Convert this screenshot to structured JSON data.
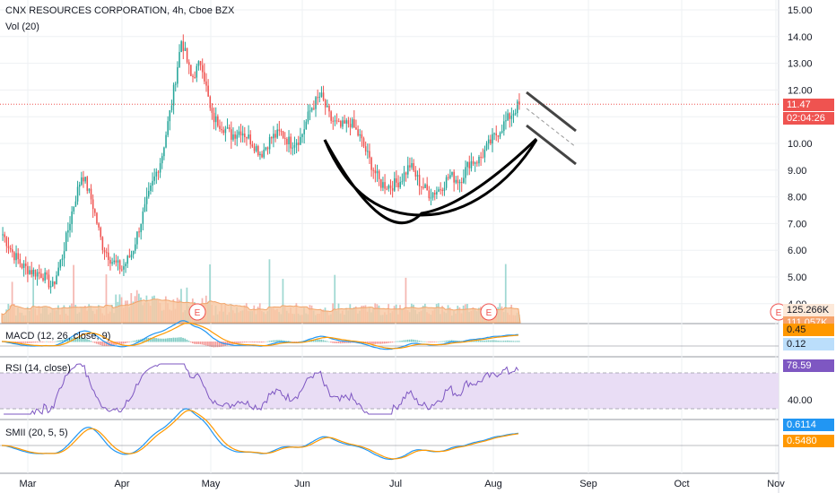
{
  "header": {
    "symbol_line": "CNX RESOURCES CORPORATION, 4h, Cboe BZX",
    "volume_line": "Vol (20)"
  },
  "indicators": {
    "macd_label": "MACD (12, 26, close, 9)",
    "rsi_label": "RSI (14, close)",
    "smii_label": "SMII (20, 5, 5)"
  },
  "price_axis": {
    "ticks": [
      "15.00",
      "14.00",
      "13.00",
      "12.00",
      "10.00",
      "9.00",
      "8.00",
      "7.00",
      "6.00",
      "5.00",
      "4.00"
    ]
  },
  "tags": {
    "last_price": "11.47",
    "countdown": "02:04:26",
    "volume_value": "125.266K",
    "volume_ma": "111.057K",
    "macd_value": "0.45",
    "macd_signal": "0.12",
    "rsi_value": "78.59",
    "rsi_level": "40.00",
    "smii_value": "0.6114",
    "smii_signal": "0.5480"
  },
  "earnings_marker": "E",
  "time_axis": {
    "labels": [
      "Mar",
      "Apr",
      "May",
      "Jun",
      "Jul",
      "Aug",
      "Sep",
      "Oct",
      "Nov"
    ]
  },
  "colors": {
    "up": "#26a69a",
    "down": "#ef5350",
    "macd": "#2196f3",
    "signal": "#ff9800",
    "rsi": "#7e57c2",
    "rsi_band": "#e9ddf5",
    "vol_ma": "#f7c8a2",
    "price_line": "#ef5350"
  },
  "chart_data": {
    "type": "candlestick",
    "title": "CNX RESOURCES CORPORATION, 4h, Cboe BZX",
    "x_labels": [
      "Mar",
      "Apr",
      "May",
      "Jun",
      "Jul",
      "Aug",
      "Sep",
      "Oct",
      "Nov"
    ],
    "y_range": [
      3.8,
      15.2
    ],
    "last_price": 11.47,
    "close_path": [
      {
        "x": "Feb 24",
        "y": 6.6
      },
      {
        "x": "Feb 28",
        "y": 5.9
      },
      {
        "x": "Mar 4",
        "y": 5.4
      },
      {
        "x": "Mar 8",
        "y": 5.2
      },
      {
        "x": "Mar 12",
        "y": 5.1
      },
      {
        "x": "Mar 15",
        "y": 4.6
      },
      {
        "x": "Mar 18",
        "y": 5.8
      },
      {
        "x": "Mar 21",
        "y": 7.5
      },
      {
        "x": "Mar 24",
        "y": 8.9
      },
      {
        "x": "Mar 27",
        "y": 7.8
      },
      {
        "x": "Mar 30",
        "y": 6.2
      },
      {
        "x": "Apr 2",
        "y": 5.6
      },
      {
        "x": "Apr 4",
        "y": 5.3
      },
      {
        "x": "Apr 6",
        "y": 5.9
      },
      {
        "x": "Apr 9",
        "y": 7.2
      },
      {
        "x": "Apr 12",
        "y": 8.4
      },
      {
        "x": "Apr 15",
        "y": 9.5
      },
      {
        "x": "Apr 18",
        "y": 11.5
      },
      {
        "x": "Apr 20",
        "y": 13.9
      },
      {
        "x": "Apr 22",
        "y": 12.4
      },
      {
        "x": "Apr 25",
        "y": 13.1
      },
      {
        "x": "Apr 28",
        "y": 11.0
      },
      {
        "x": "May 2",
        "y": 10.7
      },
      {
        "x": "May 6",
        "y": 10.3
      },
      {
        "x": "May 10",
        "y": 10.5
      },
      {
        "x": "May 14",
        "y": 10.1
      },
      {
        "x": "May 18",
        "y": 9.6
      },
      {
        "x": "May 22",
        "y": 10.2
      },
      {
        "x": "May 26",
        "y": 10.4
      },
      {
        "x": "May 30",
        "y": 10.0
      },
      {
        "x": "Jun 3",
        "y": 10.2
      },
      {
        "x": "Jun 7",
        "y": 11.3
      },
      {
        "x": "Jun 9",
        "y": 11.8
      },
      {
        "x": "Jun 12",
        "y": 10.9
      },
      {
        "x": "Jun 15",
        "y": 10.6
      },
      {
        "x": "Jun 18",
        "y": 10.8
      },
      {
        "x": "Jun 21",
        "y": 10.2
      },
      {
        "x": "Jun 24",
        "y": 9.3
      },
      {
        "x": "Jun 28",
        "y": 8.5
      },
      {
        "x": "Jul 1",
        "y": 8.4
      },
      {
        "x": "Jul 5",
        "y": 8.6
      },
      {
        "x": "Jul 8",
        "y": 9.2
      },
      {
        "x": "Jul 11",
        "y": 8.5
      },
      {
        "x": "Jul 14",
        "y": 8.1
      },
      {
        "x": "Jul 18",
        "y": 8.3
      },
      {
        "x": "Jul 21",
        "y": 8.8
      },
      {
        "x": "Jul 25",
        "y": 8.6
      },
      {
        "x": "Jul 28",
        "y": 9.3
      },
      {
        "x": "Aug 1",
        "y": 9.4
      },
      {
        "x": "Aug 4",
        "y": 10.0
      },
      {
        "x": "Aug 7",
        "y": 10.5
      },
      {
        "x": "Aug 9",
        "y": 11.0
      },
      {
        "x": "Aug 11",
        "y": 11.47
      }
    ],
    "annotations": [
      "cup curve drawn below price from early June to mid August",
      "descending parallel channel to the right of the last candle"
    ],
    "rsi_range": [
      20,
      90
    ],
    "rsi_last": 78.59,
    "macd_last": {
      "macd": 0.45,
      "signal": 0.12
    },
    "smii_last": {
      "smii": 0.6114,
      "signal": 0.548
    }
  }
}
